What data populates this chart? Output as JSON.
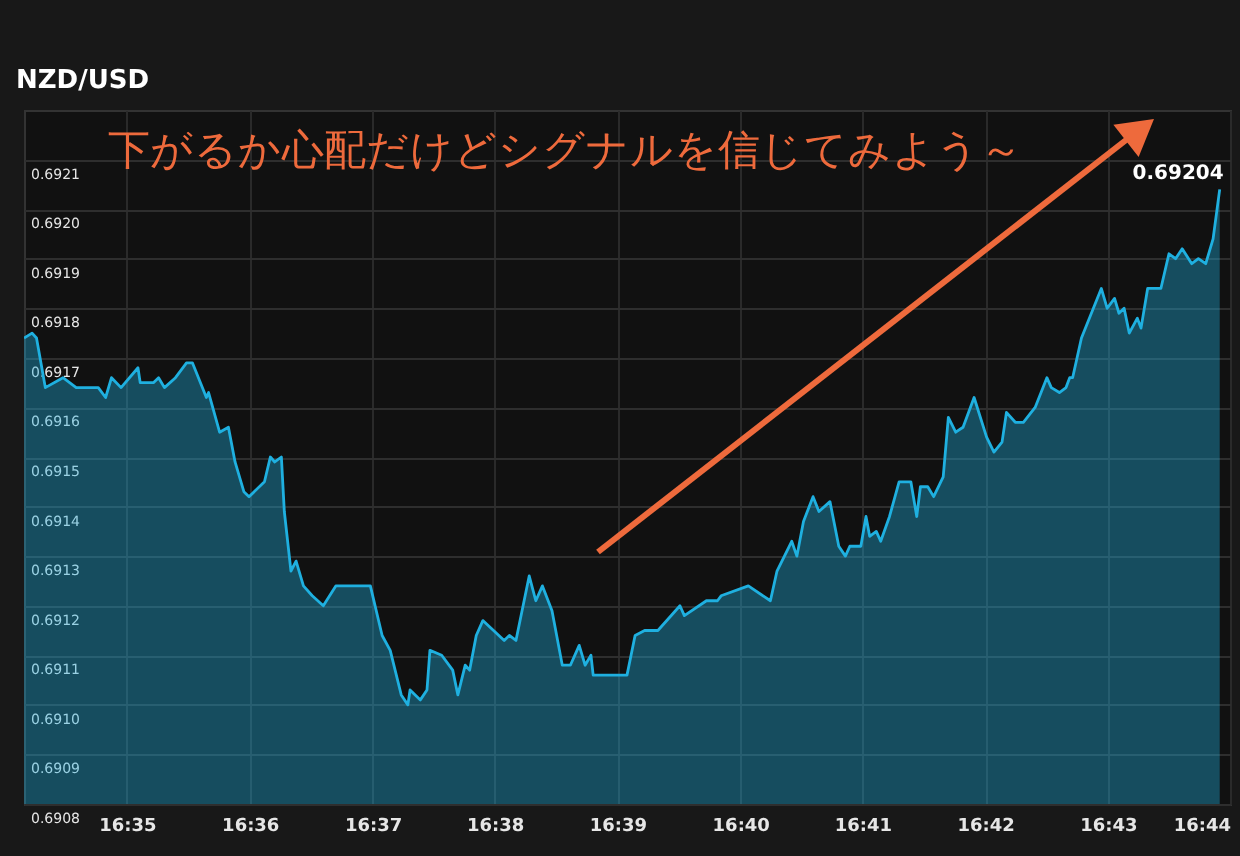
{
  "chart_data": {
    "type": "area",
    "title": "NZD/USD",
    "annotations": [
      "下がるか心配だけどシグナルを信じてみよう～",
      {
        "text": "0.69204",
        "x": 16.7319,
        "y": 0.69204
      }
    ],
    "xlim": [
      16.5693,
      16.7333
    ],
    "xticks": [
      {
        "value": 16.5833,
        "label": "16:35"
      },
      {
        "value": 16.6,
        "label": "16:36"
      },
      {
        "value": 16.6167,
        "label": "16:37"
      },
      {
        "value": 16.6333,
        "label": "16:38"
      },
      {
        "value": 16.65,
        "label": "16:39"
      },
      {
        "value": 16.6667,
        "label": "16:40"
      },
      {
        "value": 16.6833,
        "label": "16:41"
      },
      {
        "value": 16.7,
        "label": "16:42"
      },
      {
        "value": 16.7167,
        "label": "16:43"
      },
      {
        "value": 16.7333,
        "label": "16:44"
      }
    ],
    "ylim": [
      0.6908,
      0.6922
    ],
    "yticks": [
      0.6908,
      0.6909,
      {
        "value": 0.691,
        "label": "0.6910"
      },
      0.6911,
      0.6912,
      0.6913,
      0.6914,
      0.6915,
      0.6916,
      0.6917,
      0.6918,
      0.6919,
      {
        "value": 0.692,
        "label": "0.6920"
      },
      0.6921
    ],
    "grid": true,
    "series": [
      {
        "color": "#1fb0e0",
        "x": [
          16.5693,
          16.5704,
          16.571,
          16.5722,
          16.5746,
          16.5764,
          16.5794,
          16.5804,
          16.5812,
          16.5825,
          16.5848,
          16.5851,
          16.5869,
          16.5876,
          16.5884,
          16.5899,
          16.5914,
          16.5922,
          16.5941,
          16.5944,
          16.5959,
          16.5971,
          16.598,
          16.5992,
          16.5999,
          16.602,
          16.6028,
          16.6034,
          16.6043,
          16.6047,
          16.6056,
          16.6063,
          16.6073,
          16.6085,
          16.61,
          16.6117,
          16.6164,
          16.618,
          16.6191,
          16.6206,
          16.6215,
          16.6218,
          16.6232,
          16.6241,
          16.6245,
          16.6261,
          16.6276,
          16.6283,
          16.6293,
          16.6299,
          16.6308,
          16.6317,
          16.6346,
          16.6353,
          16.6362,
          16.638,
          16.6389,
          16.6398,
          16.6411,
          16.6425,
          16.6436,
          16.6448,
          16.6456,
          16.6464,
          16.6467,
          16.6513,
          16.6524,
          16.6537,
          16.6555,
          16.6585,
          16.6591,
          16.6621,
          16.6636,
          16.6641,
          16.6678,
          16.6708,
          16.6717,
          16.6737,
          16.6744,
          16.6753,
          16.6766,
          16.6774,
          16.6789,
          16.6801,
          16.681,
          16.6816,
          16.6831,
          16.6838,
          16.6843,
          16.6852,
          16.6858,
          16.687,
          16.6883,
          16.6899,
          16.6907,
          16.6912,
          16.6922,
          16.693,
          16.6943,
          16.695,
          16.696,
          16.697,
          16.6985,
          16.7002,
          16.7012,
          16.7023,
          16.7029,
          16.7041,
          16.7052,
          16.7068,
          16.7084,
          16.709,
          16.7101,
          16.711,
          16.7115,
          16.7119,
          16.7131,
          16.7158,
          16.7166,
          16.7176,
          16.7182,
          16.7189,
          16.7196,
          16.7207,
          16.7212,
          16.7221,
          16.7239,
          16.725,
          16.7259,
          16.7268,
          16.7281,
          16.729,
          16.73,
          16.731,
          16.7319
        ],
        "values": [
          0.69174,
          0.69175,
          0.69174,
          0.69164,
          0.69166,
          0.69164,
          0.69164,
          0.69162,
          0.69166,
          0.69164,
          0.69168,
          0.69165,
          0.69165,
          0.69166,
          0.69164,
          0.69166,
          0.69169,
          0.69169,
          0.69162,
          0.69163,
          0.69155,
          0.69156,
          0.69149,
          0.69143,
          0.69142,
          0.69145,
          0.6915,
          0.69149,
          0.6915,
          0.69139,
          0.69127,
          0.69129,
          0.69124,
          0.69122,
          0.6912,
          0.69124,
          0.69124,
          0.69114,
          0.69111,
          0.69102,
          0.691,
          0.69103,
          0.69101,
          0.69103,
          0.69111,
          0.6911,
          0.69107,
          0.69102,
          0.69108,
          0.69107,
          0.69114,
          0.69117,
          0.69113,
          0.69114,
          0.69113,
          0.69126,
          0.69121,
          0.69124,
          0.69119,
          0.69108,
          0.69108,
          0.69112,
          0.69108,
          0.6911,
          0.69106,
          0.69106,
          0.69114,
          0.69115,
          0.69115,
          0.6912,
          0.69118,
          0.69121,
          0.69121,
          0.69122,
          0.69124,
          0.69121,
          0.69127,
          0.69133,
          0.6913,
          0.69137,
          0.69142,
          0.69139,
          0.69141,
          0.69132,
          0.6913,
          0.69132,
          0.69132,
          0.69138,
          0.69134,
          0.69135,
          0.69133,
          0.69138,
          0.69145,
          0.69145,
          0.69138,
          0.69144,
          0.69144,
          0.69142,
          0.69146,
          0.69158,
          0.69155,
          0.69156,
          0.69162,
          0.69154,
          0.69151,
          0.69153,
          0.69159,
          0.69157,
          0.69157,
          0.6916,
          0.69166,
          0.69164,
          0.69163,
          0.69164,
          0.69166,
          0.69166,
          0.69174,
          0.69184,
          0.6918,
          0.69182,
          0.69179,
          0.6918,
          0.69175,
          0.69178,
          0.69176,
          0.69184,
          0.69184,
          0.69191,
          0.6919,
          0.69192,
          0.69189,
          0.6919,
          0.69189,
          0.69194,
          0.69204
        ]
      }
    ]
  }
}
